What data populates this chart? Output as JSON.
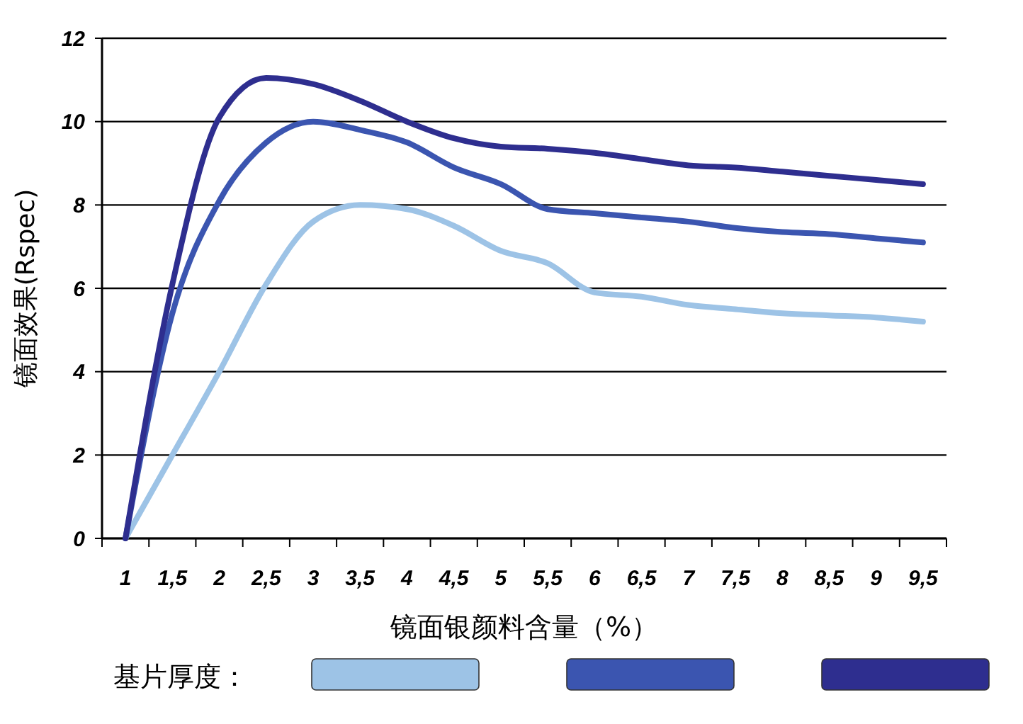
{
  "chart_data": {
    "type": "line",
    "xlabel": "镜面银颜料含量（%）",
    "ylabel": "镜面效果(Rspec)",
    "legend_title": "基片厚度：",
    "grid": "y",
    "line_style": "solid",
    "marker": "none",
    "categories": [
      "1",
      "1,5",
      "2",
      "2,5",
      "3",
      "3,5",
      "4",
      "4,5",
      "5",
      "5,5",
      "6",
      "6,5",
      "7",
      "7,5",
      "8",
      "8,5",
      "9",
      "9,5"
    ],
    "ylim": [
      0,
      12
    ],
    "yticks": [
      0,
      2,
      4,
      6,
      8,
      10,
      12
    ],
    "series": [
      {
        "color": "#9dc3e6",
        "values": [
          0,
          2.0,
          4.0,
          6.1,
          7.6,
          8.0,
          7.9,
          7.5,
          6.9,
          6.6,
          5.9,
          5.8,
          5.6,
          5.5,
          5.4,
          5.35,
          5.3,
          5.2
        ]
      },
      {
        "color": "#3b55b0",
        "values": [
          0,
          5.4,
          8.1,
          9.5,
          10.0,
          9.8,
          9.5,
          8.9,
          8.5,
          7.9,
          7.8,
          7.7,
          7.6,
          7.45,
          7.35,
          7.3,
          7.2,
          7.1
        ]
      },
      {
        "color": "#2e2e8f",
        "values": [
          0,
          6.1,
          10.1,
          11.05,
          10.9,
          10.5,
          10.0,
          9.6,
          9.4,
          9.35,
          9.25,
          9.1,
          8.95,
          8.9,
          8.8,
          8.7,
          8.6,
          8.5
        ]
      }
    ]
  }
}
